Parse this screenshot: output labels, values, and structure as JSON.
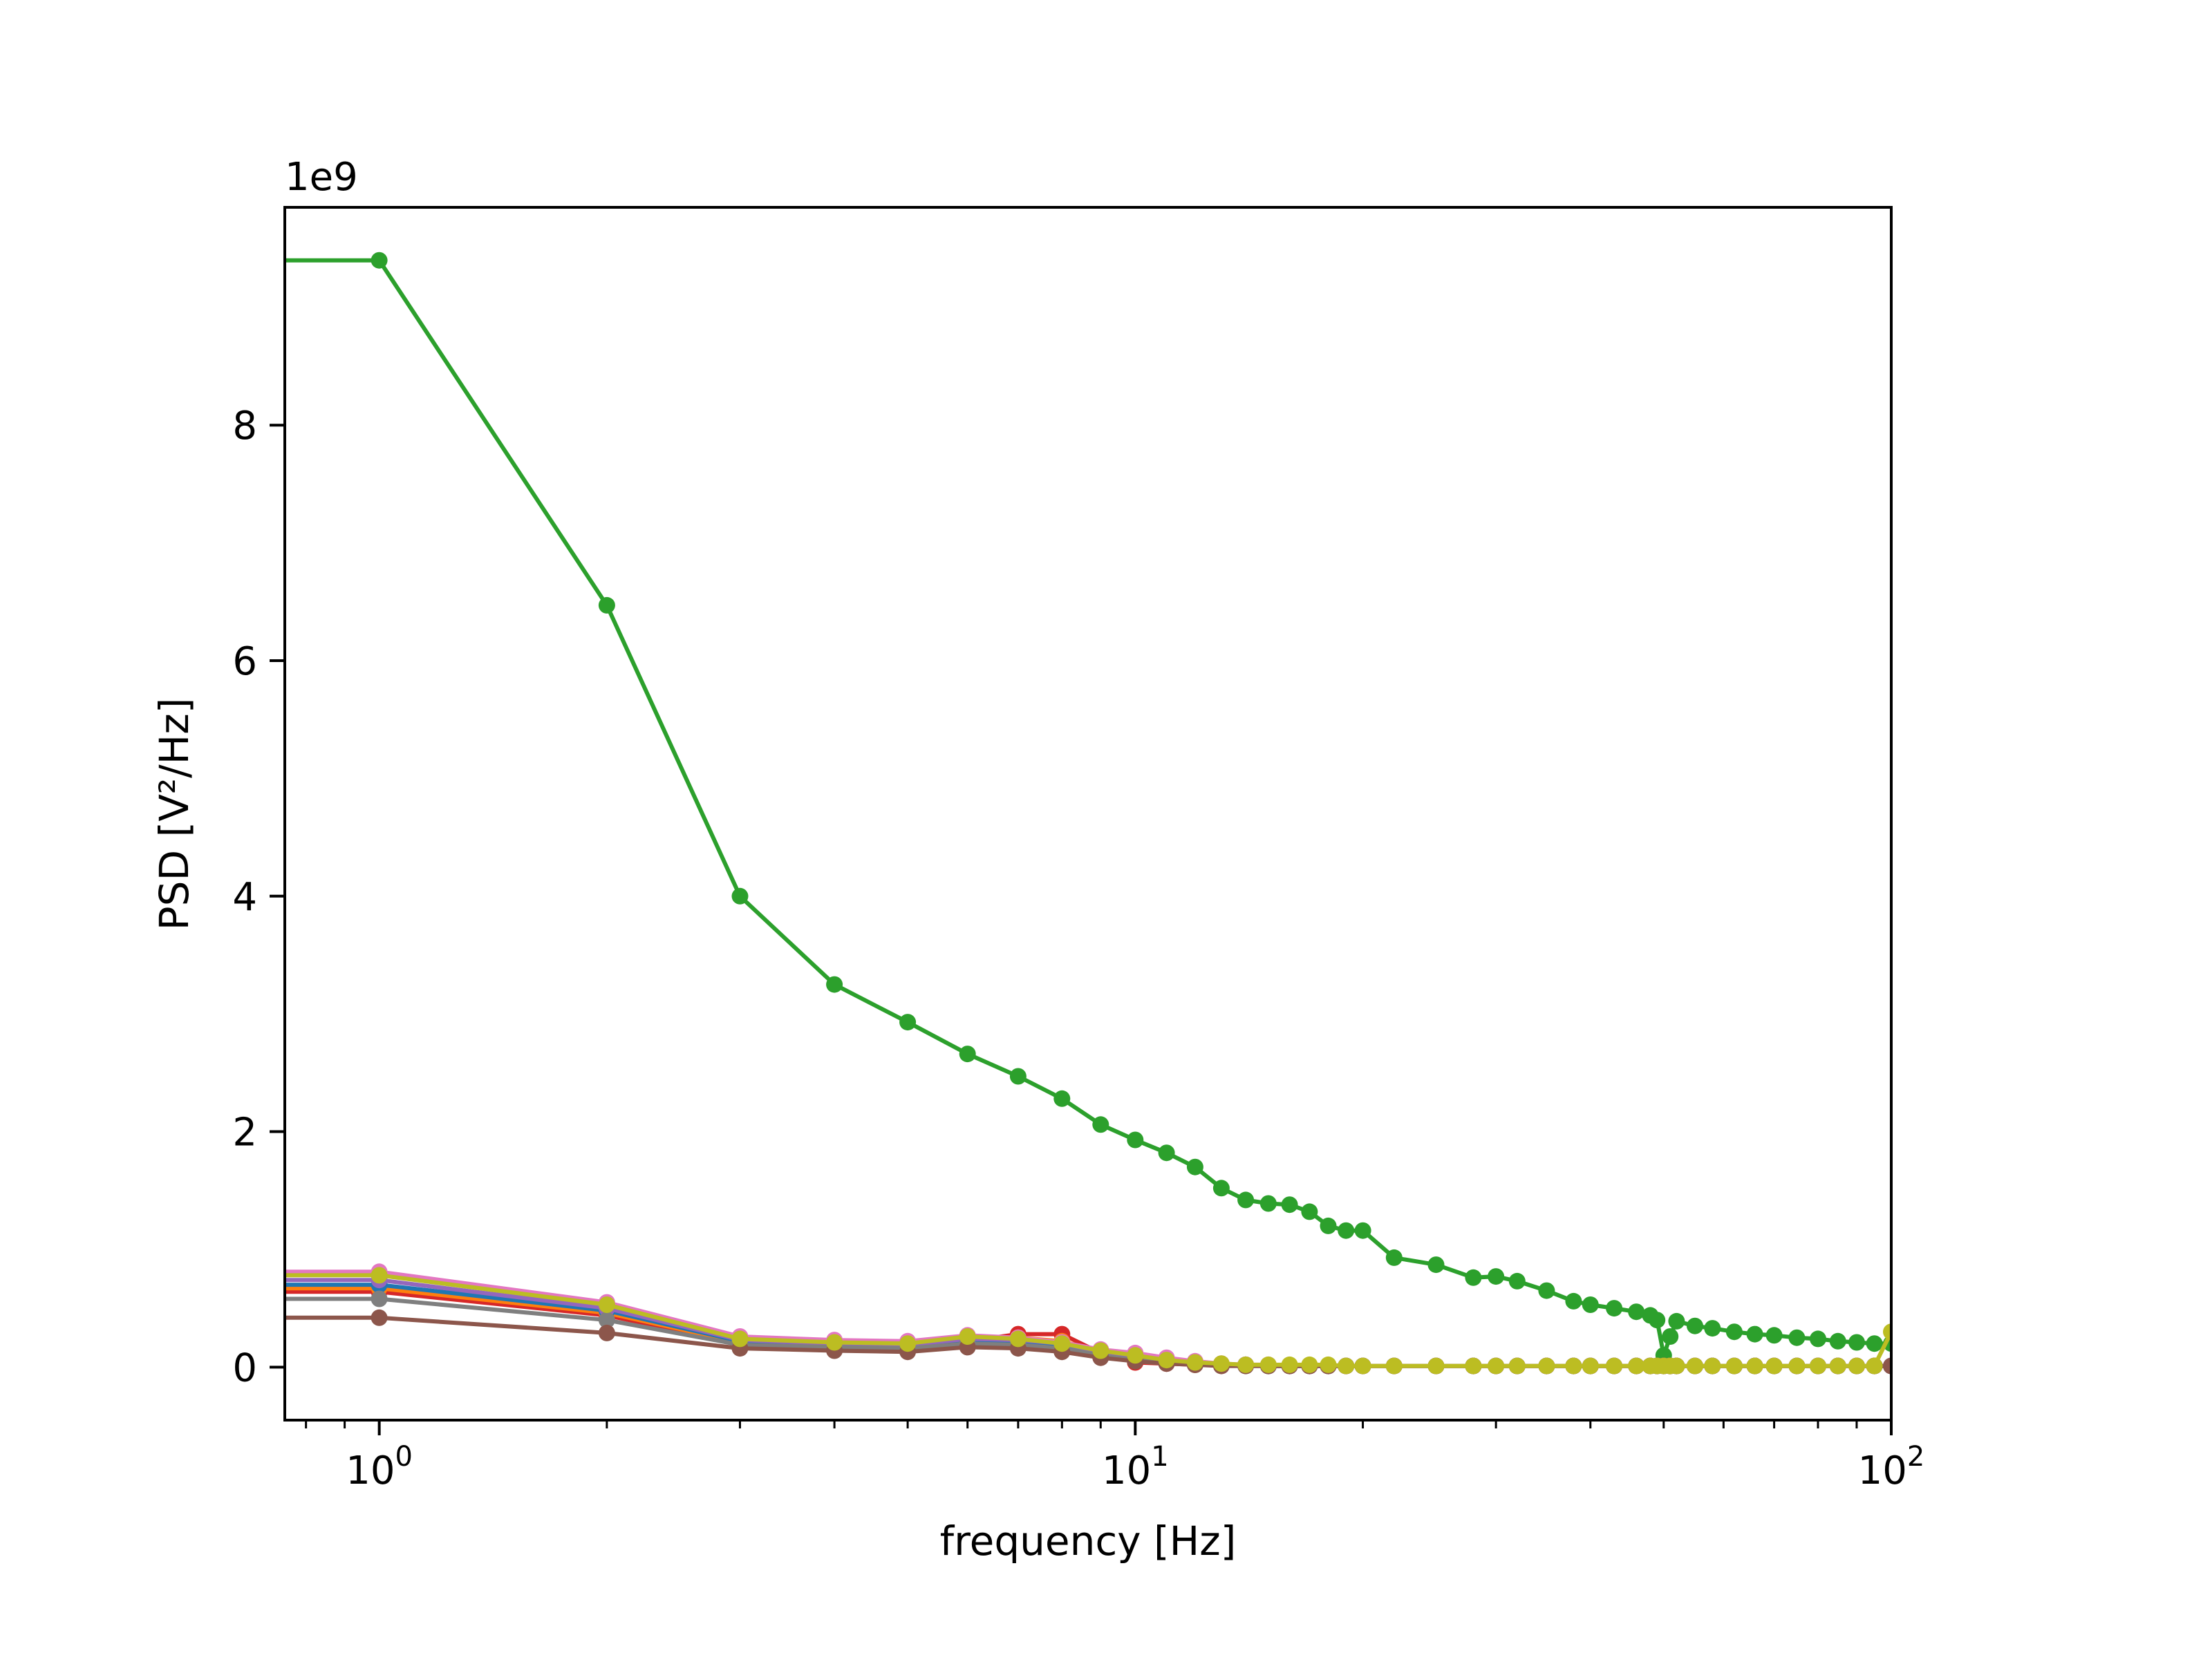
{
  "chart_data": {
    "type": "line",
    "title": "",
    "xlabel": "frequency [Hz]",
    "ylabel": "PSD [V²/Hz]",
    "xscale": "log",
    "xlim": [
      0.75,
      100
    ],
    "ylim": [
      -0.45,
      9.85
    ],
    "y_scale_factor": "1e9",
    "grid": false,
    "legend": "none",
    "x_ticks": [
      {
        "value": 1,
        "label": "10",
        "exp": "0"
      },
      {
        "value": 10,
        "label": "10",
        "exp": "1"
      },
      {
        "value": 100,
        "label": "10",
        "exp": "2"
      }
    ],
    "y_ticks": [
      {
        "value": 0,
        "label": "0"
      },
      {
        "value": 2,
        "label": "2"
      },
      {
        "value": 4,
        "label": "4"
      },
      {
        "value": 6,
        "label": "6"
      },
      {
        "value": 8,
        "label": "8"
      }
    ],
    "x": [
      0,
      1,
      2,
      3,
      4,
      5,
      6,
      7,
      8,
      9,
      10,
      11,
      12,
      13,
      14,
      15,
      16,
      17,
      18,
      19,
      20,
      22,
      25,
      28,
      30,
      32,
      35,
      38,
      40,
      43,
      46,
      48,
      49,
      50,
      51,
      52,
      55,
      58,
      62,
      66,
      70,
      75,
      80,
      85,
      90,
      95,
      100
    ],
    "series": [
      {
        "color": "#2ca02c",
        "values": [
          9.4,
          9.4,
          6.47,
          4.0,
          3.25,
          2.93,
          2.66,
          2.47,
          2.28,
          2.06,
          1.93,
          1.82,
          1.7,
          1.52,
          1.42,
          1.39,
          1.38,
          1.32,
          1.2,
          1.16,
          1.16,
          0.93,
          0.87,
          0.76,
          0.77,
          0.73,
          0.65,
          0.56,
          0.53,
          0.5,
          0.47,
          0.44,
          0.4,
          0.1,
          0.26,
          0.39,
          0.35,
          0.33,
          0.3,
          0.28,
          0.27,
          0.25,
          0.24,
          0.22,
          0.21,
          0.2,
          0.2
        ]
      },
      {
        "color": "#d62728",
        "values": [
          0.64,
          0.64,
          0.44,
          0.2,
          0.17,
          0.16,
          0.22,
          0.28,
          0.28,
          0.12,
          0.04,
          0.03,
          0.02,
          0.02,
          0.02,
          0.01,
          0.01,
          0.01,
          0.01,
          0.01,
          0.01,
          0.01,
          0.01,
          0.01,
          0.01,
          0.01,
          0.01,
          0.01,
          0.01,
          0.01,
          0.01,
          0.01,
          0.01,
          0.01,
          0.01,
          0.01,
          0.01,
          0.01,
          0.01,
          0.01,
          0.01,
          0.01,
          0.01,
          0.01,
          0.01,
          0.01,
          0.01
        ]
      },
      {
        "color": "#ff7f0e",
        "values": [
          0.67,
          0.67,
          0.46,
          0.21,
          0.18,
          0.17,
          0.23,
          0.25,
          0.22,
          0.13,
          0.06,
          0.04,
          0.02,
          0.02,
          0.02,
          0.01,
          0.01,
          0.01,
          0.01,
          0.01,
          0.01,
          0.01,
          0.01,
          0.01,
          0.01,
          0.01,
          0.01,
          0.01,
          0.01,
          0.01,
          0.01,
          0.01,
          0.01,
          0.01,
          0.01,
          0.01,
          0.01,
          0.01,
          0.01,
          0.01,
          0.01,
          0.01,
          0.01,
          0.01,
          0.01,
          0.01,
          0.01
        ]
      },
      {
        "color": "#1f77b4",
        "values": [
          0.7,
          0.7,
          0.48,
          0.22,
          0.19,
          0.18,
          0.23,
          0.22,
          0.19,
          0.12,
          0.08,
          0.05,
          0.03,
          0.02,
          0.02,
          0.01,
          0.01,
          0.01,
          0.01,
          0.01,
          0.01,
          0.01,
          0.01,
          0.01,
          0.01,
          0.01,
          0.01,
          0.01,
          0.01,
          0.01,
          0.01,
          0.01,
          0.01,
          0.01,
          0.01,
          0.01,
          0.01,
          0.01,
          0.01,
          0.01,
          0.01,
          0.01,
          0.01,
          0.01,
          0.01,
          0.01,
          0.01
        ]
      },
      {
        "color": "#9467bd",
        "values": [
          0.74,
          0.74,
          0.5,
          0.23,
          0.2,
          0.19,
          0.24,
          0.23,
          0.2,
          0.13,
          0.09,
          0.05,
          0.03,
          0.02,
          0.02,
          0.01,
          0.01,
          0.01,
          0.01,
          0.01,
          0.01,
          0.01,
          0.01,
          0.01,
          0.01,
          0.01,
          0.01,
          0.01,
          0.01,
          0.01,
          0.01,
          0.01,
          0.01,
          0.01,
          0.01,
          0.01,
          0.01,
          0.01,
          0.01,
          0.01,
          0.01,
          0.01,
          0.01,
          0.01,
          0.01,
          0.01,
          0.01
        ]
      },
      {
        "color": "#e377c2",
        "values": [
          0.81,
          0.81,
          0.55,
          0.26,
          0.23,
          0.22,
          0.27,
          0.25,
          0.21,
          0.15,
          0.12,
          0.08,
          0.05,
          0.03,
          0.02,
          0.02,
          0.01,
          0.01,
          0.01,
          0.01,
          0.01,
          0.01,
          0.01,
          0.01,
          0.01,
          0.01,
          0.01,
          0.01,
          0.01,
          0.01,
          0.01,
          0.01,
          0.01,
          0.01,
          0.01,
          0.01,
          0.01,
          0.01,
          0.01,
          0.01,
          0.01,
          0.01,
          0.01,
          0.01,
          0.01,
          0.01,
          0.01
        ]
      },
      {
        "color": "#7f7f7f",
        "values": [
          0.58,
          0.58,
          0.4,
          0.19,
          0.17,
          0.16,
          0.2,
          0.19,
          0.16,
          0.1,
          0.06,
          0.04,
          0.02,
          0.02,
          0.01,
          0.01,
          0.01,
          0.01,
          0.01,
          0.01,
          0.01,
          0.01,
          0.01,
          0.01,
          0.01,
          0.01,
          0.01,
          0.01,
          0.01,
          0.01,
          0.01,
          0.01,
          0.01,
          0.01,
          0.01,
          0.01,
          0.01,
          0.01,
          0.01,
          0.01,
          0.01,
          0.01,
          0.01,
          0.01,
          0.01,
          0.01,
          0.01
        ]
      },
      {
        "color": "#8c564b",
        "values": [
          0.42,
          0.42,
          0.29,
          0.16,
          0.14,
          0.13,
          0.17,
          0.16,
          0.13,
          0.08,
          0.05,
          0.03,
          0.02,
          0.01,
          0.01,
          0.01,
          0.01,
          0.01,
          0.01,
          0.01,
          0.01,
          0.01,
          0.01,
          0.01,
          0.01,
          0.01,
          0.01,
          0.01,
          0.01,
          0.01,
          0.01,
          0.01,
          0.01,
          0.01,
          0.01,
          0.01,
          0.01,
          0.01,
          0.01,
          0.01,
          0.01,
          0.01,
          0.01,
          0.01,
          0.01,
          0.01,
          0.01
        ]
      },
      {
        "color": "#bcbd22",
        "values": [
          0.78,
          0.78,
          0.53,
          0.24,
          0.21,
          0.2,
          0.26,
          0.24,
          0.2,
          0.14,
          0.1,
          0.06,
          0.04,
          0.03,
          0.02,
          0.02,
          0.02,
          0.02,
          0.02,
          0.01,
          0.01,
          0.01,
          0.01,
          0.01,
          0.01,
          0.01,
          0.01,
          0.01,
          0.01,
          0.01,
          0.01,
          0.01,
          0.01,
          0.01,
          0.01,
          0.01,
          0.01,
          0.01,
          0.01,
          0.01,
          0.01,
          0.01,
          0.01,
          0.01,
          0.01,
          0.01,
          0.3
        ]
      }
    ]
  }
}
